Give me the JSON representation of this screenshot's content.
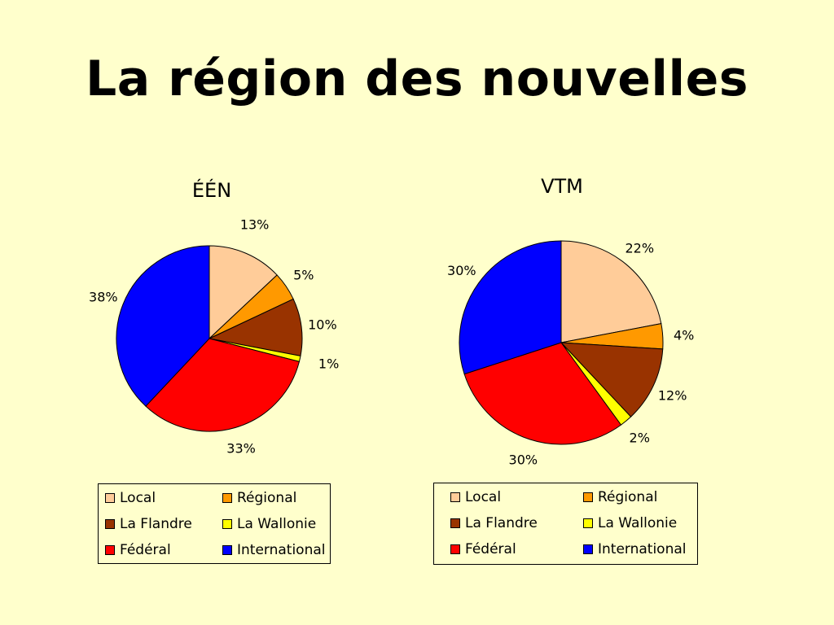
{
  "page": {
    "title": "La région des nouvelles"
  },
  "colors": {
    "Local": "#ffcc99",
    "Régional": "#ff9900",
    "La Flandre": "#993300",
    "La Wallonie": "#ffff00",
    "Fédéral": "#ff0000",
    "International": "#0000ff"
  },
  "chart_data": [
    {
      "type": "pie",
      "title": "ÉÉN",
      "categories": [
        "Local",
        "Régional",
        "La Flandre",
        "La Wallonie",
        "Fédéral",
        "International"
      ],
      "values": [
        13,
        5,
        10,
        1,
        33,
        38
      ],
      "labels": [
        "13%",
        "5%",
        "10%",
        "1%",
        "33%",
        "38%"
      ],
      "legend": "bottom"
    },
    {
      "type": "pie",
      "title": "VTM",
      "categories": [
        "Local",
        "Régional",
        "La Flandre",
        "La Wallonie",
        "Fédéral",
        "International"
      ],
      "values": [
        22,
        4,
        12,
        2,
        30,
        30
      ],
      "labels": [
        "22%",
        "4%",
        "12%",
        "2%",
        "30%",
        "30%"
      ],
      "legend": "bottom"
    }
  ]
}
